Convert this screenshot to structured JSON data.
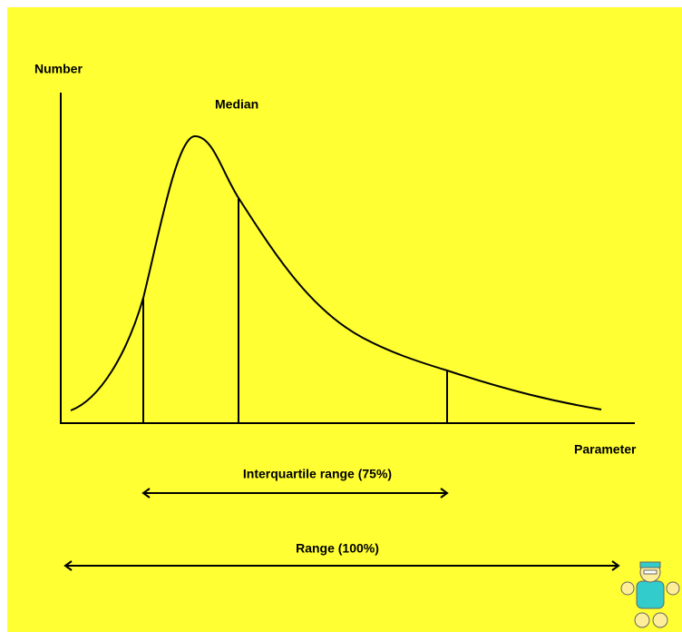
{
  "axes": {
    "y_label": "Number",
    "x_label": "Parameter"
  },
  "annotations": {
    "median": "Median",
    "interquartile_range": "Interquartile range (75%)",
    "range": "Range (100%)"
  }
}
